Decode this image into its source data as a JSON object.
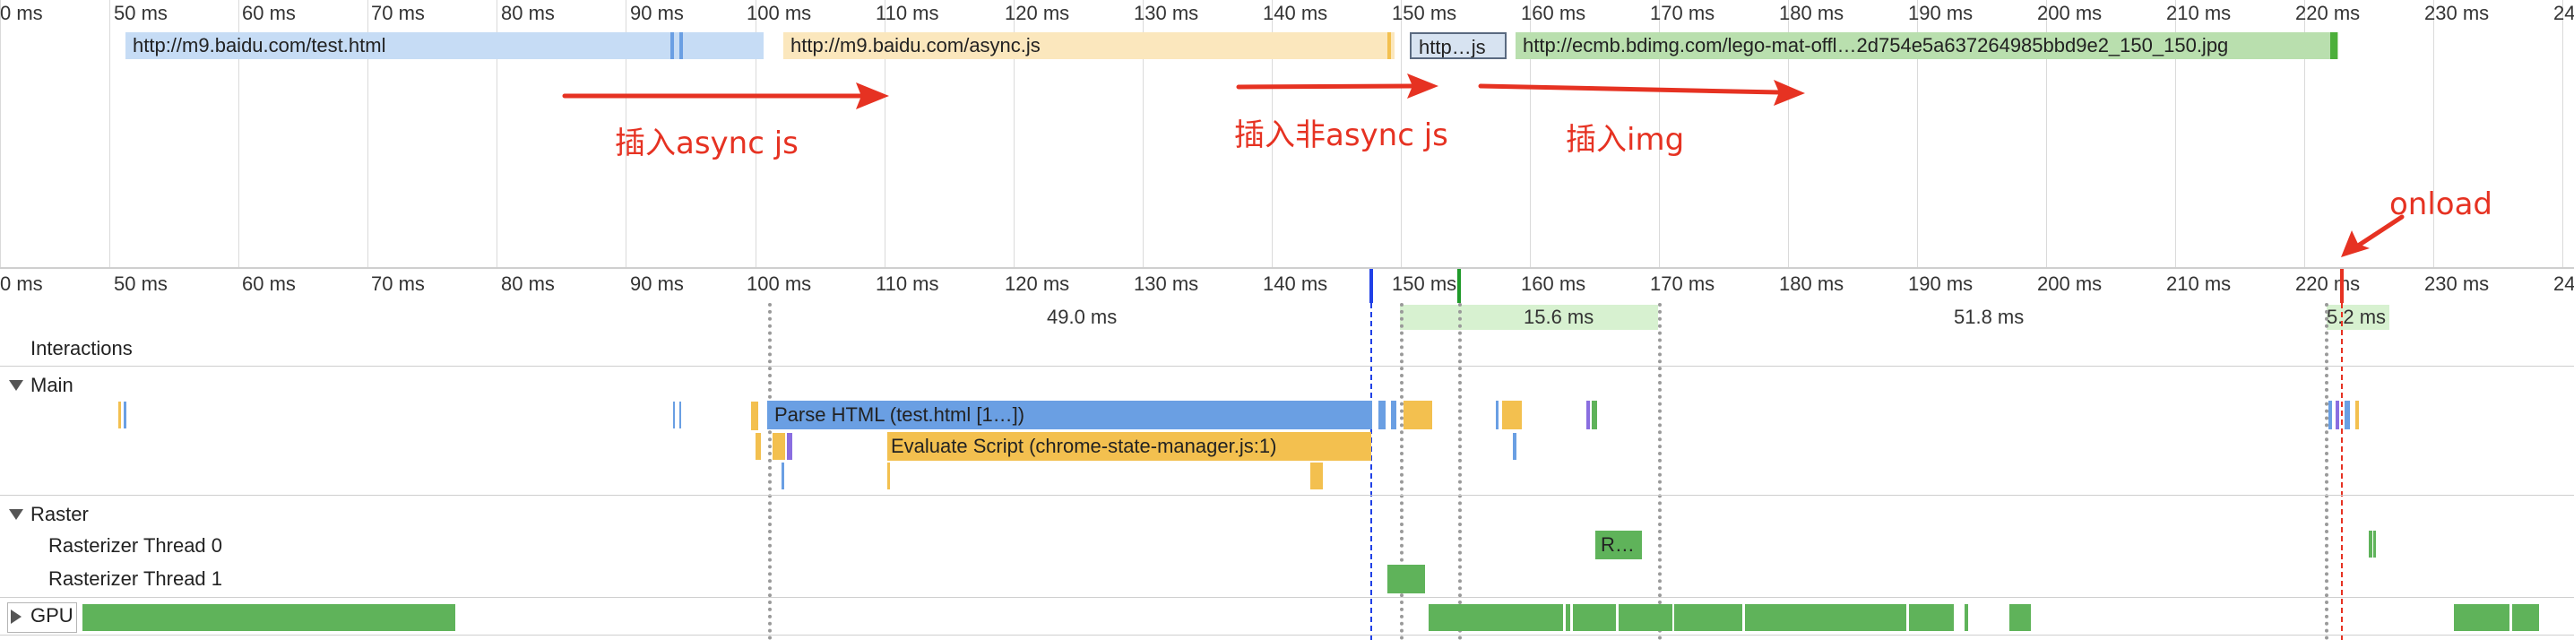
{
  "colors": {
    "html_bar": "#c6dcf5",
    "js_bar": "#fbe7bd",
    "img_bar": "#b9dfae",
    "parse_html": "#6a9fe3",
    "evaluate_script": "#f3c04f",
    "raster": "#5fb35a",
    "gpu": "#5fb35a",
    "annotation": "#e63222",
    "dcl_marker": "#2040e6",
    "first_paint_marker": "#1f9a2a",
    "load_marker": "#e63222"
  },
  "ruler_ticks": [
    "0 ms",
    "50 ms",
    "60 ms",
    "70 ms",
    "80 ms",
    "90 ms",
    "100 ms",
    "110 ms",
    "120 ms",
    "130 ms",
    "140 ms",
    "150 ms",
    "160 ms",
    "170 ms",
    "180 ms",
    "190 ms",
    "200 ms",
    "210 ms",
    "220 ms",
    "230 ms",
    "24"
  ],
  "network": {
    "req_html": "http://m9.baidu.com/test.html",
    "req_async": "http://m9.baidu.com/async.js",
    "req_js": "http…js",
    "req_img": "http://ecmb.bdimg.com/lego-mat-offl…2d754e5a637264985bbd9e2_150_150.jpg"
  },
  "annotations": {
    "async_js": "插入async js",
    "non_async_js": "插入非async js",
    "img": "插入img",
    "onload": "onload"
  },
  "intervals": {
    "i1": "49.0 ms",
    "i2": "15.6 ms",
    "i3": "51.8 ms",
    "i4": "5.2 ms"
  },
  "tracks": {
    "interactions": "Interactions",
    "main": "Main",
    "raster": "Raster",
    "raster0": "Rasterizer Thread 0",
    "raster1": "Rasterizer Thread 1",
    "gpu": "GPU"
  },
  "events": {
    "parse_html": "Parse HTML (test.html [1…])",
    "evaluate_script": "Evaluate Script (chrome-state-manager.js:1)",
    "raster_block": "R…"
  }
}
